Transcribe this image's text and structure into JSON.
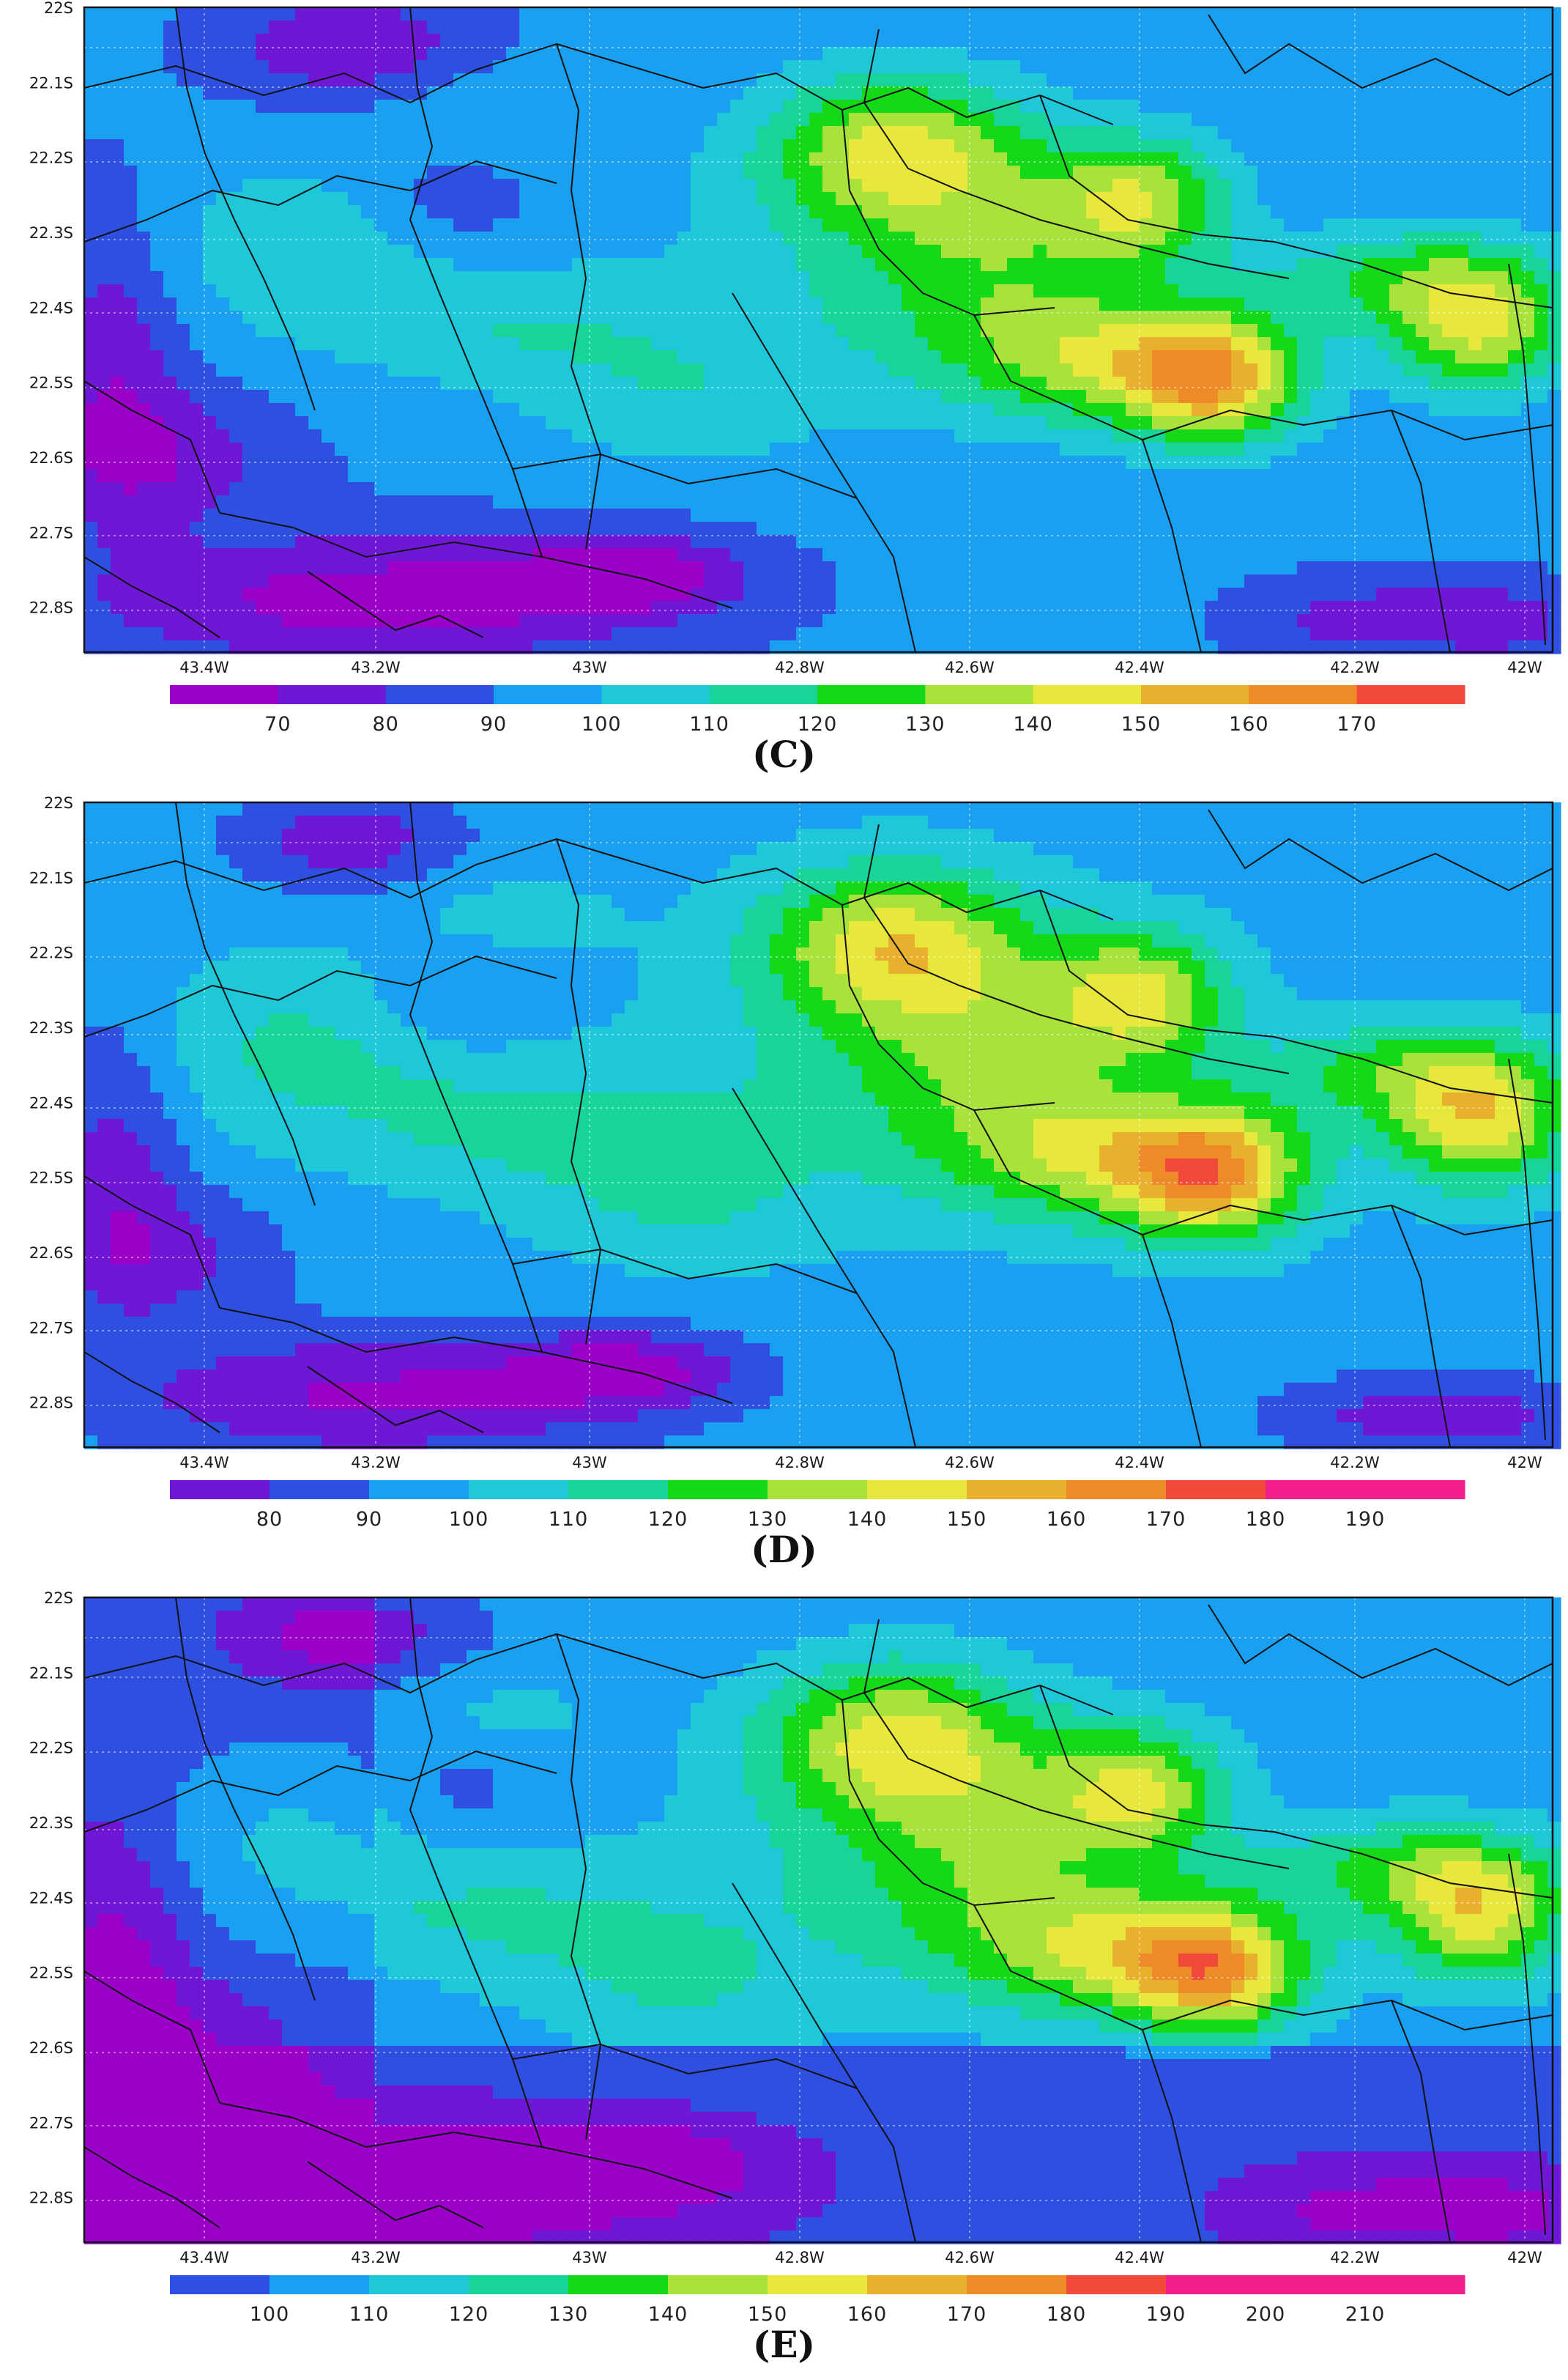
{
  "panels": [
    {
      "id": "C",
      "caption": "(C)",
      "colorbar_ticks": [
        "70",
        "80",
        "90",
        "100",
        "110",
        "120",
        "130",
        "140",
        "150",
        "160",
        "170"
      ],
      "colorbar_min": 60,
      "colorbar_max": 180
    },
    {
      "id": "D",
      "caption": "(D)",
      "colorbar_ticks": [
        "80",
        "90",
        "100",
        "110",
        "120",
        "130",
        "140",
        "150",
        "160",
        "170",
        "180",
        "190"
      ],
      "colorbar_min": 70,
      "colorbar_max": 200
    },
    {
      "id": "E",
      "caption": "(E)",
      "colorbar_ticks": [
        "100",
        "110",
        "120",
        "130",
        "140",
        "150",
        "160",
        "170",
        "180",
        "190",
        "200",
        "210"
      ],
      "colorbar_min": 90,
      "colorbar_max": 220
    }
  ],
  "lat_labels": [
    "22S",
    "22.1S",
    "22.2S",
    "22.3S",
    "22.4S",
    "22.5S",
    "22.6S",
    "22.7S",
    "22.8S"
  ],
  "lon_labels": [
    "43.4W",
    "43.2W",
    "43W",
    "42.8W",
    "42.6W",
    "42.4W",
    "42.2W",
    "42W"
  ],
  "colors": {
    "palette": [
      "#9b00c8",
      "#6e17d4",
      "#2e4fe0",
      "#1aa0f0",
      "#1ec8d8",
      "#17d49a",
      "#14d818",
      "#a8e23a",
      "#e8e83c",
      "#e8b02c",
      "#ee8a28",
      "#f24a3a",
      "#f21e8c"
    ]
  }
}
